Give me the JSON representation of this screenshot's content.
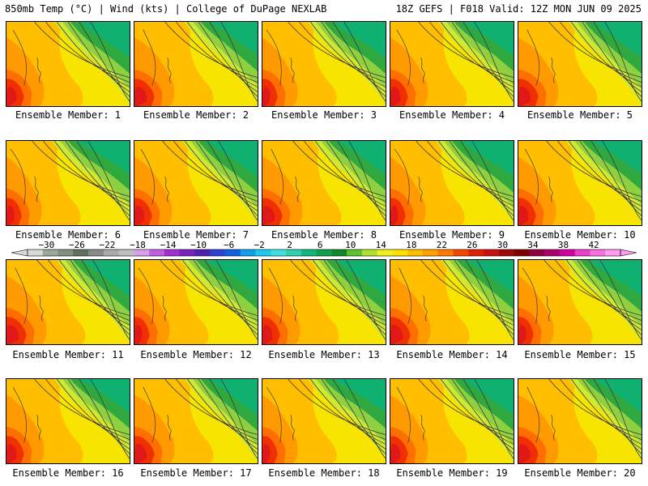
{
  "header": {
    "left_title": "850mb Temp (°C) | Wind (kts) | College of DuPage NEXLAB",
    "right_title": "18Z GEFS | F018 Valid: 12Z MON JUN 09 2025"
  },
  "panel_label_prefix": "Ensemble Member: ",
  "members": [
    1,
    2,
    3,
    4,
    5,
    6,
    7,
    8,
    9,
    10,
    11,
    12,
    13,
    14,
    15,
    16,
    17,
    18,
    19,
    20
  ],
  "colorbar": {
    "tick_labels": [
      "-30",
      "-26",
      "-22",
      "-18",
      "-14",
      "-10",
      "-6",
      "-2",
      "2",
      "6",
      "10",
      "14",
      "18",
      "22",
      "26",
      "30",
      "34",
      "38",
      "42"
    ],
    "colors": [
      "#d9d9d9",
      "#9ba89b",
      "#7f907f",
      "#607060",
      "#8a8a8a",
      "#aaaaaa",
      "#c0c0c0",
      "#d8a0e8",
      "#c060e0",
      "#a030d0",
      "#7a20c0",
      "#5020b0",
      "#3040d0",
      "#1060e0",
      "#10a0e8",
      "#20c8f0",
      "#40e0e0",
      "#30d0b0",
      "#10b880",
      "#10a050",
      "#108828",
      "#60c030",
      "#b0e030",
      "#f0f020",
      "#ffe000",
      "#ffc000",
      "#ffa000",
      "#ff7800",
      "#f04800",
      "#e02000",
      "#c81010",
      "#a00808",
      "#800000",
      "#900040",
      "#b00070",
      "#d000a0",
      "#e840c8",
      "#f870e0",
      "#ff9cf0"
    ]
  }
}
